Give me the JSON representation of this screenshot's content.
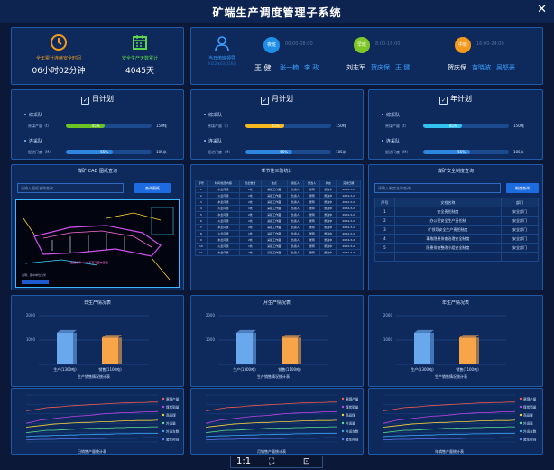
{
  "header": {
    "title": "矿端生产调度管理子系统",
    "close_icon": "close-icon"
  },
  "stats": {
    "safe_time_label": "全年累计连续安全时间",
    "safe_time_value": "06小时02分钟",
    "safe_days_label": "安全生产天数累计",
    "safe_days_value": "4045天"
  },
  "shifts": {
    "leader_label": "当日值班领导",
    "leader_sub": "2022年03月16日",
    "leader_name": "王 健",
    "items": [
      {
        "badge": "夜班",
        "time": "00:00-08:00",
        "people": [
          "张一楠",
          "李 政"
        ],
        "color": "#1d8fe8"
      },
      {
        "badge": "早班",
        "time": "8:00-16:00",
        "people": [
          "刘志军",
          "贺庆保",
          "王 健"
        ],
        "color": "#7ec628"
      },
      {
        "badge": "中班",
        "time": "16:00-24:00",
        "people": [
          "贺庆保",
          "苗晓波",
          "吴怒豪"
        ],
        "color": "#f39a1c"
      }
    ]
  },
  "plans": [
    {
      "title": "日计划",
      "teams": [
        {
          "name": "综采队",
          "row": "原煤产量（t）",
          "pct": 0.45,
          "pct_label": "45%",
          "total": "150吨"
        },
        {
          "name": "连采队",
          "row": "掘进尺度（M）",
          "pct": 0.55,
          "pct_label": "55%",
          "total": "185米"
        }
      ],
      "colors": [
        "#6cc324",
        "#2f86e0"
      ]
    },
    {
      "title": "月计划",
      "teams": [
        {
          "name": "综采队",
          "row": "原煤产量（t）",
          "pct": 0.45,
          "pct_label": "45%",
          "total": "150吨"
        },
        {
          "name": "连采队",
          "row": "掘进尺度（M）",
          "pct": 0.55,
          "pct_label": "55%",
          "total": "185米"
        }
      ],
      "colors": [
        "#f6b81c",
        "#2f86e0"
      ]
    },
    {
      "title": "年计划",
      "teams": [
        {
          "name": "综采队",
          "row": "原煤产量（t）",
          "pct": 0.45,
          "pct_label": "45%",
          "total": "150吨"
        },
        {
          "name": "连采队",
          "row": "掘进尺度（M）",
          "pct": 0.55,
          "pct_label": "55%",
          "total": "185米"
        }
      ],
      "colors": [
        "#31c2f0",
        "#2f86e0"
      ]
    }
  ],
  "cad": {
    "title": "煤矿 CAD 图纸查询",
    "placeholder": "请输入图纸名称查询",
    "button": "查询图纸"
  },
  "stats_table": {
    "title": "季节性三防统计",
    "headers": [
      "序号",
      "时间/检查内容",
      "隐患数量",
      "地点",
      "责任人",
      "整改人",
      "状态",
      "完成日期"
    ],
    "rows": [
      [
        "1",
        "水患问题",
        "2处",
        "采掘工作面",
        "负责人",
        "张明",
        "整改中",
        "2024-3-2"
      ],
      [
        "2",
        "火患问题",
        "1处",
        "采掘工作面",
        "负责人",
        "张明",
        "整改中",
        "2024-3-2"
      ],
      [
        "3",
        "水患问题",
        "2处",
        "采掘工作面",
        "负责人",
        "张明",
        "整改中",
        "2024-3-2"
      ],
      [
        "4",
        "火患问题",
        "1处",
        "采掘工作面",
        "负责人",
        "张明",
        "整改中",
        "2024-3-2"
      ],
      [
        "5",
        "水患问题",
        "2处",
        "采掘工作面",
        "负责人",
        "张明",
        "整改中",
        "2024-3-2"
      ],
      [
        "6",
        "火患问题",
        "1处",
        "采掘工作面",
        "负责人",
        "张明",
        "整改中",
        "2024-3-2"
      ],
      [
        "7",
        "水患问题",
        "2处",
        "采掘工作面",
        "负责人",
        "张明",
        "整改中",
        "2024-3-2"
      ],
      [
        "8",
        "火患问题",
        "1处",
        "采掘工作面",
        "负责人",
        "张明",
        "整改中",
        "2024-3-2"
      ],
      [
        "9",
        "水患问题",
        "2处",
        "采掘工作面",
        "负责人",
        "张明",
        "整改中",
        "2024-3-2"
      ],
      [
        "10",
        "火患问题",
        "1处",
        "采掘工作面",
        "负责人",
        "张明",
        "整改中",
        "2024-3-2"
      ],
      [
        "11",
        "水患问题",
        "2处",
        "采掘工作面",
        "负责人",
        "张明",
        "整改中",
        "2024-3-2"
      ]
    ]
  },
  "safety": {
    "title": "煤矿安全制度查询",
    "placeholder": "请输入制度名称查询",
    "button": "制度查询",
    "headers": [
      "序号",
      "文档名称",
      "部门"
    ],
    "rows": [
      [
        "1",
        "安全责任制度",
        "安全部门"
      ],
      [
        "2",
        "办公室安全生产责任制",
        "安全部门"
      ],
      [
        "3",
        "矿领导安全生产责任制度",
        "安全部门"
      ],
      [
        "4",
        "事故隐患排查治理安全制度",
        "安全部门"
      ],
      [
        "5",
        "隐患排查整改小组安全制度",
        "安全部门"
      ]
    ]
  },
  "charts": [
    {
      "title": "日生产情况表",
      "bars": [
        {
          "label": "生产(1300吨)",
          "value": 1300,
          "color": "#6aa8ee"
        },
        {
          "label": "销售(1100吨)",
          "value": 1100,
          "color": "#f8a54a"
        }
      ],
      "xlabel": "生产销售情况统计表",
      "ymax": 2000,
      "yticks": [
        "2000",
        "1000",
        ""
      ],
      "linetitle": "日销售产量统计表"
    },
    {
      "title": "月生产情况表",
      "bars": [
        {
          "label": "生产(1300吨)",
          "value": 1300,
          "color": "#6aa8ee"
        },
        {
          "label": "销售(1100吨)",
          "value": 1100,
          "color": "#f8a54a"
        }
      ],
      "xlabel": "生产销售情况统计表",
      "ymax": 2000,
      "yticks": [
        "2000",
        "1000",
        ""
      ],
      "linetitle": "月销售产量统计表"
    },
    {
      "title": "年生产情况表",
      "bars": [
        {
          "label": "生产(1300吨)",
          "value": 1300,
          "color": "#6aa8ee"
        },
        {
          "label": "销售(1100吨)",
          "value": 1100,
          "color": "#f8a54a"
        }
      ],
      "xlabel": "生产销售情况统计表",
      "ymax": 2000,
      "yticks": [
        "2000",
        "1000",
        ""
      ],
      "linetitle": "年销售产量统计表"
    }
  ],
  "line_chart": {
    "legend": [
      "原煤产量",
      "煤炭销量",
      "商品煤",
      "外运量",
      "外运车数",
      "装车时间"
    ],
    "colors": [
      "#f25a4e",
      "#c244e8",
      "#f6d23a",
      "#5ee08a",
      "#3aa9f7",
      "#5e7cf0"
    ],
    "series": [
      [
        80,
        82,
        85,
        88,
        89,
        90,
        92,
        93,
        94,
        95,
        96,
        97,
        98,
        99,
        100,
        100,
        101,
        101,
        102,
        102
      ],
      [
        48,
        52,
        56,
        58,
        60,
        62,
        64,
        66,
        67,
        68,
        70,
        72,
        73,
        74,
        75,
        75,
        76,
        77,
        77,
        78
      ],
      [
        38,
        40,
        42,
        44,
        46,
        47,
        48,
        49,
        50,
        50,
        51,
        52,
        52,
        53,
        54,
        54,
        55,
        55,
        55,
        56
      ],
      [
        24,
        26,
        28,
        30,
        30,
        31,
        32,
        33,
        34,
        35,
        35,
        36,
        36,
        37,
        37,
        38,
        38,
        38,
        39,
        39
      ],
      [
        14,
        15,
        16,
        16,
        17,
        17,
        18,
        18,
        19,
        19,
        20,
        20,
        20,
        21,
        21,
        21,
        22,
        22,
        22,
        22
      ],
      [
        6,
        6,
        7,
        7,
        7,
        8,
        8,
        8,
        9,
        9,
        9,
        9,
        10,
        10,
        10,
        10,
        10,
        11,
        11,
        11
      ]
    ],
    "ymax": 120
  },
  "bottom": {
    "zoom": "1:1"
  }
}
